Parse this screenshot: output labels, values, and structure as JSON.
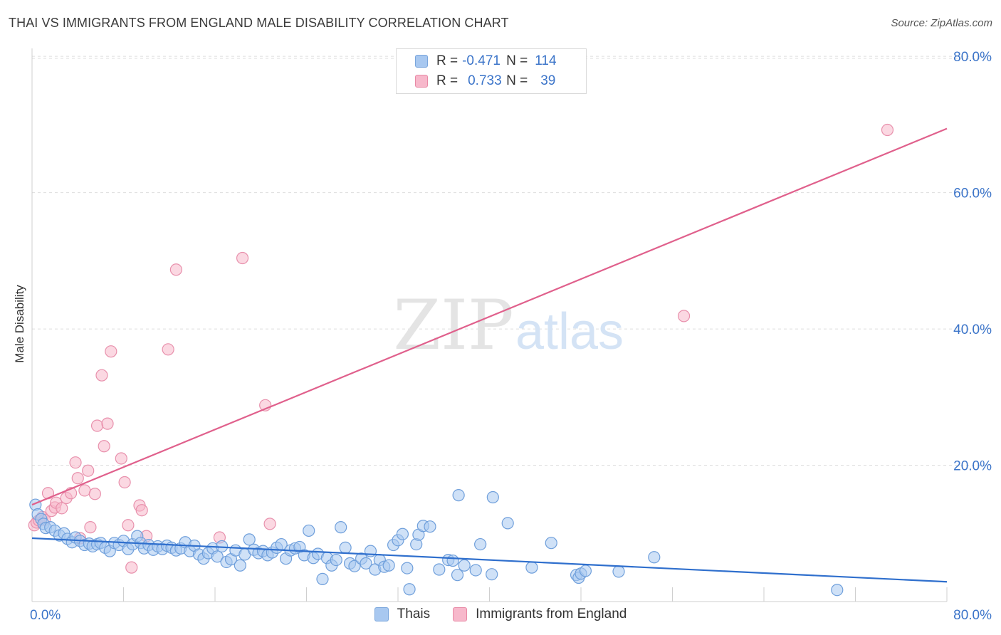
{
  "header": {
    "title": "THAI VS IMMIGRANTS FROM ENGLAND MALE DISABILITY CORRELATION CHART",
    "source": "Source: ZipAtlas.com"
  },
  "watermark": {
    "zip": "ZIP",
    "atlas": "atlas"
  },
  "legend": {
    "rows": [
      {
        "r_label": "R =",
        "r_value": "-0.471",
        "n_label": "N =",
        "n_value": "114",
        "fill": "#a8c8f0",
        "stroke": "#7aa6dc"
      },
      {
        "r_label": "R =",
        "r_value": "0.733",
        "n_label": "N =",
        "n_value": "39",
        "fill": "#f7b8cb",
        "stroke": "#e88aa6"
      }
    ]
  },
  "colors": {
    "thai_fill": "#a8c8f0",
    "thai_stroke": "#6f9fdb",
    "thai_line": "#2f6fcd",
    "eng_fill": "#f7b8cb",
    "eng_stroke": "#e890ac",
    "eng_line": "#e0608c",
    "axis_text": "#3b74c9",
    "grid": "#dddddd"
  },
  "chart_data": {
    "type": "scatter",
    "title": "THAI VS IMMIGRANTS FROM ENGLAND MALE DISABILITY CORRELATION CHART",
    "xlabel": "",
    "ylabel": "Male Disability",
    "xlim": [
      0,
      80
    ],
    "ylim": [
      0,
      82
    ],
    "x_tick_labels": [
      {
        "value": 0,
        "label": "0.0%"
      },
      {
        "value": 80,
        "label": "80.0%"
      }
    ],
    "y_tick_labels": [
      {
        "value": 20,
        "label": "20.0%"
      },
      {
        "value": 40,
        "label": "40.0%"
      },
      {
        "value": 60,
        "label": "60.0%"
      },
      {
        "value": 80,
        "label": "80.0%"
      }
    ],
    "grid": true,
    "legend_position": "bottom",
    "series": [
      {
        "name": "Thais",
        "trend": {
          "x": [
            0,
            80
          ],
          "y": [
            9.3,
            2.9
          ]
        },
        "points": [
          [
            0.3,
            14.2
          ],
          [
            0.5,
            12.8
          ],
          [
            0.8,
            12.1
          ],
          [
            1.0,
            11.4
          ],
          [
            1.2,
            10.8
          ],
          [
            1.6,
            10.9
          ],
          [
            2.0,
            10.4
          ],
          [
            2.4,
            9.7
          ],
          [
            2.8,
            10.0
          ],
          [
            3.1,
            9.2
          ],
          [
            3.5,
            8.7
          ],
          [
            3.8,
            9.4
          ],
          [
            4.2,
            8.9
          ],
          [
            4.6,
            8.3
          ],
          [
            5.0,
            8.5
          ],
          [
            5.3,
            8.1
          ],
          [
            5.7,
            8.4
          ],
          [
            6.0,
            8.6
          ],
          [
            6.4,
            7.9
          ],
          [
            6.8,
            7.4
          ],
          [
            7.2,
            8.6
          ],
          [
            7.6,
            8.3
          ],
          [
            8.0,
            8.9
          ],
          [
            8.4,
            7.7
          ],
          [
            8.8,
            8.4
          ],
          [
            9.2,
            9.6
          ],
          [
            9.5,
            8.6
          ],
          [
            9.8,
            7.8
          ],
          [
            10.2,
            8.3
          ],
          [
            10.6,
            7.6
          ],
          [
            11.0,
            8.1
          ],
          [
            11.4,
            7.7
          ],
          [
            11.8,
            8.2
          ],
          [
            12.2,
            7.9
          ],
          [
            12.6,
            7.5
          ],
          [
            13.0,
            7.8
          ],
          [
            13.4,
            8.7
          ],
          [
            13.8,
            7.4
          ],
          [
            14.2,
            8.2
          ],
          [
            14.6,
            6.9
          ],
          [
            15.0,
            6.3
          ],
          [
            15.4,
            7.1
          ],
          [
            15.8,
            7.8
          ],
          [
            16.2,
            6.6
          ],
          [
            16.6,
            8.1
          ],
          [
            17.0,
            5.8
          ],
          [
            17.4,
            6.2
          ],
          [
            17.8,
            7.5
          ],
          [
            18.2,
            5.3
          ],
          [
            18.6,
            6.9
          ],
          [
            19.0,
            9.1
          ],
          [
            19.4,
            7.6
          ],
          [
            19.8,
            7.1
          ],
          [
            20.2,
            7.4
          ],
          [
            20.6,
            6.8
          ],
          [
            21.0,
            7.2
          ],
          [
            21.4,
            7.9
          ],
          [
            21.8,
            8.4
          ],
          [
            22.2,
            6.3
          ],
          [
            22.6,
            7.5
          ],
          [
            23.0,
            7.8
          ],
          [
            23.4,
            8.0
          ],
          [
            23.8,
            6.8
          ],
          [
            24.2,
            10.4
          ],
          [
            24.6,
            6.4
          ],
          [
            25.0,
            7.0
          ],
          [
            25.4,
            3.3
          ],
          [
            25.8,
            6.4
          ],
          [
            26.2,
            5.3
          ],
          [
            26.6,
            6.1
          ],
          [
            27.0,
            10.9
          ],
          [
            27.4,
            7.9
          ],
          [
            27.8,
            5.6
          ],
          [
            28.2,
            5.2
          ],
          [
            28.8,
            6.3
          ],
          [
            29.2,
            5.6
          ],
          [
            29.6,
            7.4
          ],
          [
            30.0,
            4.7
          ],
          [
            30.4,
            6.1
          ],
          [
            30.8,
            5.1
          ],
          [
            31.2,
            5.3
          ],
          [
            31.6,
            8.3
          ],
          [
            32.0,
            9.0
          ],
          [
            32.4,
            9.9
          ],
          [
            32.8,
            4.9
          ],
          [
            33.0,
            1.8
          ],
          [
            33.6,
            8.4
          ],
          [
            33.8,
            9.8
          ],
          [
            34.2,
            11.1
          ],
          [
            34.8,
            11.0
          ],
          [
            35.6,
            4.7
          ],
          [
            36.4,
            6.1
          ],
          [
            36.8,
            6.0
          ],
          [
            37.2,
            3.9
          ],
          [
            37.3,
            15.6
          ],
          [
            37.8,
            5.3
          ],
          [
            38.8,
            4.6
          ],
          [
            39.2,
            8.4
          ],
          [
            40.2,
            4.0
          ],
          [
            40.3,
            15.3
          ],
          [
            41.6,
            11.5
          ],
          [
            43.7,
            5.0
          ],
          [
            45.4,
            8.6
          ],
          [
            47.6,
            3.9
          ],
          [
            47.8,
            3.5
          ],
          [
            48.0,
            4.1
          ],
          [
            48.4,
            4.5
          ],
          [
            51.3,
            4.4
          ],
          [
            54.4,
            6.5
          ],
          [
            70.4,
            1.7
          ]
        ]
      },
      {
        "name": "Immigrants from England",
        "trend": {
          "x": [
            0,
            80
          ],
          "y": [
            14.2,
            69.4
          ]
        },
        "points": [
          [
            0.2,
            11.2
          ],
          [
            0.4,
            11.6
          ],
          [
            0.6,
            11.9
          ],
          [
            0.9,
            12.4
          ],
          [
            1.1,
            12.0
          ],
          [
            1.4,
            15.9
          ],
          [
            1.7,
            13.3
          ],
          [
            2.0,
            13.8
          ],
          [
            2.1,
            14.5
          ],
          [
            2.6,
            13.7
          ],
          [
            3.0,
            15.2
          ],
          [
            3.4,
            15.9
          ],
          [
            3.8,
            20.4
          ],
          [
            4.0,
            18.1
          ],
          [
            4.2,
            9.3
          ],
          [
            4.6,
            16.3
          ],
          [
            4.9,
            19.2
          ],
          [
            5.1,
            10.9
          ],
          [
            5.5,
            15.8
          ],
          [
            5.7,
            25.8
          ],
          [
            6.1,
            33.2
          ],
          [
            6.3,
            22.8
          ],
          [
            6.6,
            26.1
          ],
          [
            6.9,
            36.7
          ],
          [
            7.8,
            21.0
          ],
          [
            8.1,
            17.5
          ],
          [
            8.4,
            11.2
          ],
          [
            8.7,
            5.0
          ],
          [
            9.4,
            14.1
          ],
          [
            9.6,
            13.4
          ],
          [
            10.0,
            9.6
          ],
          [
            11.9,
            37.0
          ],
          [
            12.6,
            48.7
          ],
          [
            16.4,
            9.4
          ],
          [
            18.4,
            50.4
          ],
          [
            20.4,
            28.8
          ],
          [
            20.8,
            11.4
          ],
          [
            57.0,
            41.9
          ],
          [
            74.8,
            69.2
          ]
        ]
      }
    ]
  },
  "bottom_legend": [
    {
      "label": "Thais"
    },
    {
      "label": "Immigrants from England"
    }
  ]
}
